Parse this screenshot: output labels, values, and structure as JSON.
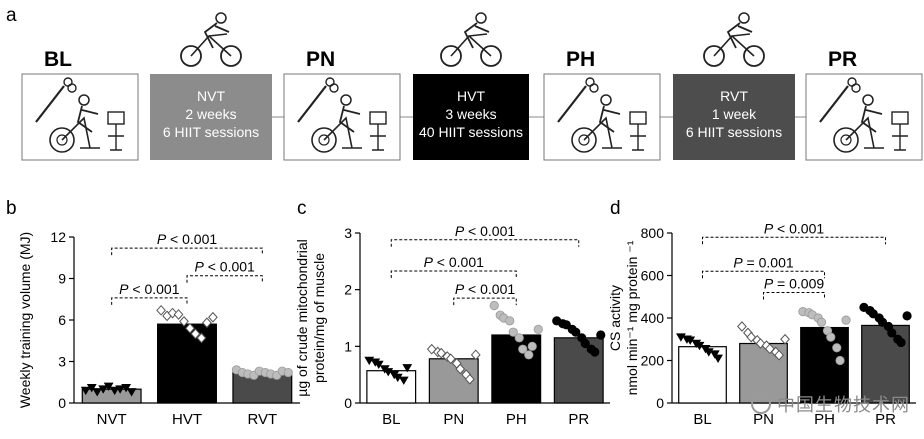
{
  "panel_letters": [
    "a",
    "b",
    "c",
    "d"
  ],
  "timeline": {
    "tests": [
      "BL",
      "PN",
      "PH",
      "PR"
    ],
    "blocks": [
      {
        "lines": [
          "NVT",
          "2 weeks",
          "6 HIIT sessions"
        ],
        "fill": "#8c8c8c"
      },
      {
        "lines": [
          "HVT",
          "3 weeks",
          "40 HIIT sessions"
        ],
        "fill": "#000000"
      },
      {
        "lines": [
          "RVT",
          "1 week",
          "6 HIIT sessions"
        ],
        "fill": "#4d4d4d"
      }
    ]
  },
  "colors": {
    "white_bar": "#ffffff",
    "grey_bar": "#999999",
    "black_bar": "#000000",
    "dark_bar": "#4a4a4a",
    "point_grey": "#bdbdbd"
  },
  "watermark": "中国生物技术网",
  "chart_data": [
    {
      "panel": "b",
      "type": "bar",
      "ylabel": "Weekly training volume (MJ)",
      "ylim": [
        0,
        12
      ],
      "yticks": [
        "0",
        "3",
        "6",
        "9",
        "12"
      ],
      "categories": [
        "NVT",
        "HVT",
        "RVT"
      ],
      "values": [
        1.0,
        5.7,
        2.2
      ],
      "bar_colors": [
        "#999999",
        "#000000",
        "#4a4a4a"
      ],
      "points": [
        {
          "marker": "triangle-down",
          "color": "#000000",
          "values": [
            0.9,
            1.1,
            0.8,
            1.0,
            1.2,
            0.9,
            1.0,
            1.1,
            0.8
          ]
        },
        {
          "marker": "diamond",
          "color": "#ffffff",
          "values": [
            6.7,
            6.3,
            6.5,
            6.4,
            5.9,
            5.4,
            5.0,
            4.7,
            5.8,
            6.2
          ]
        },
        {
          "marker": "circle",
          "color": "#bdbdbd",
          "values": [
            2.4,
            2.2,
            2.1,
            2.0,
            2.3,
            2.2,
            2.1,
            2.0,
            2.3,
            2.2
          ]
        }
      ],
      "comparisons": [
        {
          "from": 0,
          "to": 2,
          "y": 11.2,
          "text": "P < 0.001"
        },
        {
          "from": 1,
          "to": 2,
          "y": 9.2,
          "text": "P < 0.001"
        },
        {
          "from": 0,
          "to": 1,
          "y": 7.6,
          "text": "P < 0.001"
        }
      ]
    },
    {
      "panel": "c",
      "type": "bar",
      "ylabel": "µg of crude mitochondrial protein/mg of muscle",
      "ylim": [
        0,
        3
      ],
      "yticks": [
        "0",
        "1",
        "2",
        "3"
      ],
      "categories": [
        "BL",
        "PN",
        "PH",
        "PR"
      ],
      "values": [
        0.57,
        0.78,
        1.2,
        1.15
      ],
      "bar_colors": [
        "#ffffff",
        "#999999",
        "#000000",
        "#4a4a4a"
      ],
      "points": [
        {
          "marker": "triangle-down",
          "color": "#000000",
          "values": [
            0.75,
            0.72,
            0.68,
            0.6,
            0.55,
            0.5,
            0.45,
            0.4,
            0.62
          ]
        },
        {
          "marker": "diamond",
          "color": "#ffffff",
          "values": [
            0.95,
            0.9,
            0.88,
            0.82,
            0.78,
            0.7,
            0.6,
            0.5,
            0.42,
            0.85
          ]
        },
        {
          "marker": "circle",
          "color": "#bdbdbd",
          "values": [
            1.72,
            1.55,
            1.5,
            1.45,
            1.25,
            1.15,
            0.95,
            0.85,
            1.0,
            1.3
          ]
        },
        {
          "marker": "circle",
          "color": "#000000",
          "values": [
            1.45,
            1.4,
            1.38,
            1.3,
            1.25,
            1.15,
            1.05,
            0.95,
            0.9,
            1.2
          ]
        }
      ],
      "comparisons": [
        {
          "from": 0,
          "to": 3,
          "y": 2.88,
          "text": "P < 0.001"
        },
        {
          "from": 0,
          "to": 2,
          "y": 2.33,
          "text": "P < 0.001"
        },
        {
          "from": 1,
          "to": 2,
          "y": 1.85,
          "text": "P < 0.001"
        }
      ]
    },
    {
      "panel": "d",
      "type": "bar",
      "ylabel_lines": [
        "CS activity",
        "nmol min⁻¹ mg protein ⁻¹"
      ],
      "ylim": [
        0,
        800
      ],
      "yticks": [
        "0",
        "200",
        "400",
        "600",
        "800"
      ],
      "categories": [
        "BL",
        "PN",
        "PH",
        "PR"
      ],
      "values": [
        265,
        280,
        355,
        365
      ],
      "bar_colors": [
        "#ffffff",
        "#999999",
        "#000000",
        "#4a4a4a"
      ],
      "points": [
        {
          "marker": "triangle-down",
          "color": "#000000",
          "values": [
            310,
            300,
            295,
            280,
            270,
            255,
            240,
            230,
            210
          ]
        },
        {
          "marker": "diamond",
          "color": "#ffffff",
          "values": [
            360,
            330,
            310,
            295,
            280,
            270,
            255,
            240,
            225,
            300
          ]
        },
        {
          "marker": "circle",
          "color": "#bdbdbd",
          "values": [
            430,
            425,
            415,
            400,
            380,
            340,
            310,
            260,
            200,
            390
          ]
        },
        {
          "marker": "circle",
          "color": "#000000",
          "values": [
            450,
            435,
            420,
            400,
            380,
            360,
            330,
            300,
            285,
            410
          ]
        }
      ],
      "comparisons": [
        {
          "from": 0,
          "to": 3,
          "y": 780,
          "text": "P < 0.001"
        },
        {
          "from": 0,
          "to": 2,
          "y": 620,
          "text": "P = 0.001"
        },
        {
          "from": 1,
          "to": 2,
          "y": 520,
          "text": "P = 0.009"
        }
      ]
    }
  ]
}
